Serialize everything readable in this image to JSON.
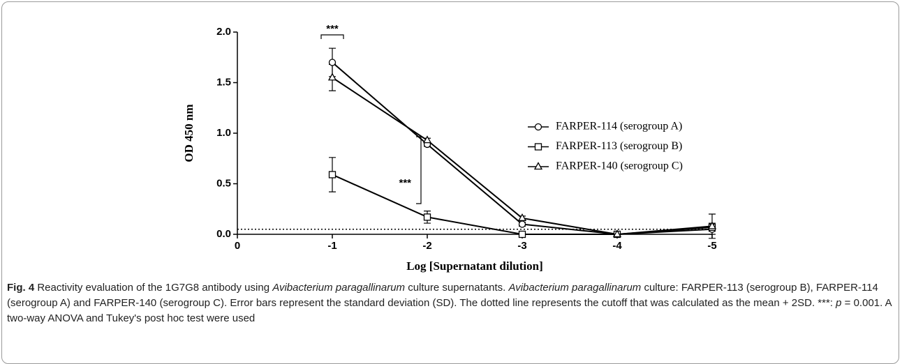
{
  "chart_data": {
    "type": "line",
    "x": [
      -1,
      -2,
      -3,
      -4,
      -5
    ],
    "series": [
      {
        "name": "FARPER-114 (serogroup A)",
        "color": "#000000",
        "marker": "circle",
        "values": [
          1.7,
          0.89,
          0.1,
          0.0,
          0.05
        ],
        "errors": [
          0.14,
          0.02,
          0.02,
          0.0,
          0.05
        ]
      },
      {
        "name": "FARPER-113 (serogroup B)",
        "color": "#000000",
        "marker": "square",
        "values": [
          0.59,
          0.17,
          0.0,
          0.0,
          0.07
        ],
        "errors": [
          0.17,
          0.06,
          0.02,
          0.0,
          0.04
        ]
      },
      {
        "name": "FARPER-140 (serogroup C)",
        "color": "#000000",
        "marker": "triangle",
        "values": [
          1.55,
          0.93,
          0.16,
          0.0,
          0.08
        ],
        "errors": [
          0.13,
          0.02,
          0.02,
          0.0,
          0.12
        ]
      }
    ],
    "cutoff": 0.05,
    "xlabel": "Log [Supernatant dilution]",
    "ylabel": "OD 450 nm",
    "xlim": [
      0,
      -5
    ],
    "xticks": [
      0,
      -1,
      -2,
      -3,
      -4,
      -5
    ],
    "ylim": [
      0,
      2
    ],
    "yticks": [
      {
        "value": 0,
        "label": "0.0"
      },
      0.5,
      {
        "value": 1,
        "label": "1.0"
      },
      1.5,
      {
        "value": 2,
        "label": "2.0"
      }
    ],
    "annotations": [
      "***",
      "***"
    ]
  },
  "caption": {
    "label": "Fig. 4",
    "parts": [
      " Reactivity evaluation of the 1G7G8 antibody using ",
      "Avibacterium paragallinarum",
      " culture supernatants. ",
      "Avibacterium paragallinarum",
      " culture: FARPER-113 (serogroup B), FARPER-114 (serogroup A) and FARPER-140 (serogroup C). Error bars represent the standard deviation (SD). The dotted line represents the cutoff that was calculated as the mean + 2SD. ***: ",
      "p",
      " = 0.001. A two-way ANOVA and Tukey's post hoc test were used"
    ]
  }
}
